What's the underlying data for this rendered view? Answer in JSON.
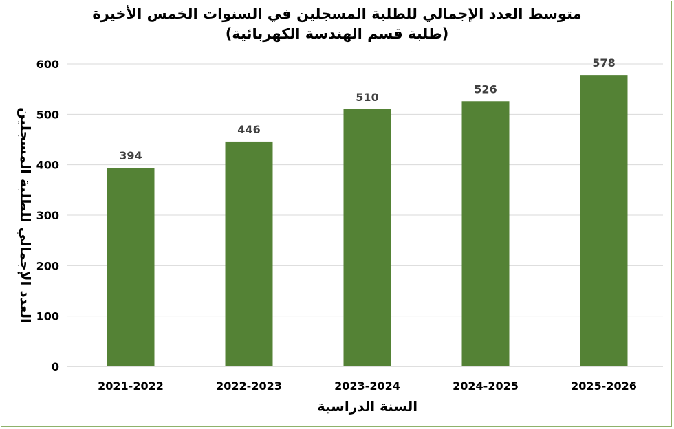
{
  "chart_data": {
    "type": "bar",
    "title": "متوسط العدد الإجمالي للطلبة المسجلين في السنوات الخمس الأخيرة",
    "subtitle": "(طلبة قسم الهندسة الكهربائية)",
    "xlabel": "السنة الدراسية",
    "ylabel": "العدد الإجمالي للطلبة المسجلين",
    "categories": [
      "2021-2022",
      "2022-2023",
      "2023-2024",
      "2024-2025",
      "2025-2026"
    ],
    "values": [
      394,
      446,
      510,
      526,
      578
    ],
    "ylim": [
      0,
      600
    ],
    "yticks": [
      0,
      100,
      200,
      300,
      400,
      500,
      600
    ],
    "grid": true,
    "legend": "none",
    "bar_color": "#548235",
    "grid_color": "#d9d9d9",
    "frame_color": "#8fb16a"
  }
}
